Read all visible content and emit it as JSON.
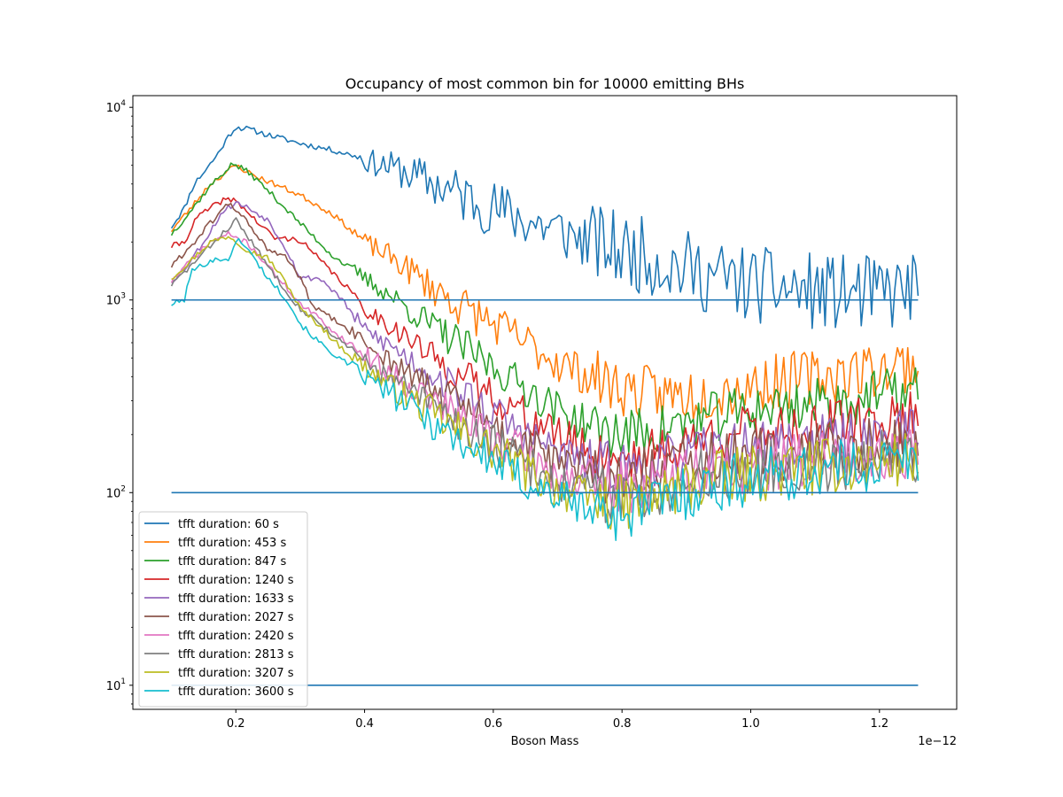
{
  "chart_data": {
    "type": "line",
    "title": "Occupancy of most common bin for 10000 emitting BHs",
    "xlabel": "Boson Mass",
    "ylabel": "",
    "x_offset_label": "1e−12",
    "xscale": "linear",
    "yscale": "log",
    "xlim": [
      0.04,
      1.32
    ],
    "ylim": [
      7.5,
      11500
    ],
    "x_ticks": [
      0.2,
      0.4,
      0.6,
      0.8,
      1.0,
      1.2
    ],
    "x_tick_labels": [
      "0.2",
      "0.4",
      "0.6",
      "0.8",
      "1.0",
      "1.2"
    ],
    "y_ticks": [
      10,
      100,
      1000,
      10000
    ],
    "y_tick_labels": [
      [
        "10",
        "1"
      ],
      [
        "10",
        "2"
      ],
      [
        "10",
        "3"
      ],
      [
        "10",
        "4"
      ]
    ],
    "grid": false,
    "legend_position": "lower-left",
    "x_range": [
      0.1,
      1.26
    ],
    "reference_lines": [
      {
        "value": 1000,
        "color": "#1f77b4"
      },
      {
        "value": 100,
        "color": "#1f77b4"
      },
      {
        "value": 10,
        "color": "#1f77b4"
      }
    ],
    "series": [
      {
        "name": "tfft duration: 60 s",
        "color": "#1f77b4",
        "noise": 0.3,
        "noise_start": 0.39,
        "seed": 11,
        "points": [
          [
            0.1,
            2400
          ],
          [
            0.12,
            3000
          ],
          [
            0.135,
            4000
          ],
          [
            0.15,
            4600
          ],
          [
            0.17,
            5600
          ],
          [
            0.19,
            7200
          ],
          [
            0.2,
            7900
          ],
          [
            0.22,
            7700
          ],
          [
            0.25,
            7200
          ],
          [
            0.3,
            6500
          ],
          [
            0.35,
            6000
          ],
          [
            0.385,
            5600
          ],
          [
            0.4,
            5300
          ],
          [
            0.45,
            4800
          ],
          [
            0.5,
            4100
          ],
          [
            0.55,
            3500
          ],
          [
            0.6,
            3000
          ],
          [
            0.65,
            2600
          ],
          [
            0.7,
            2300
          ],
          [
            0.75,
            2000
          ],
          [
            0.8,
            1800
          ],
          [
            0.85,
            1650
          ],
          [
            0.9,
            1450
          ],
          [
            0.95,
            1300
          ],
          [
            1.0,
            1200
          ],
          [
            1.05,
            1150
          ],
          [
            1.1,
            1100
          ],
          [
            1.15,
            1080
          ],
          [
            1.2,
            1070
          ],
          [
            1.26,
            1150
          ]
        ]
      },
      {
        "name": "tfft duration: 453 s",
        "color": "#ff7f0e",
        "noise": 0.22,
        "noise_start": 0.38,
        "seed": 23,
        "points": [
          [
            0.1,
            2300
          ],
          [
            0.13,
            3000
          ],
          [
            0.16,
            4000
          ],
          [
            0.2,
            5000
          ],
          [
            0.23,
            4400
          ],
          [
            0.26,
            4000
          ],
          [
            0.3,
            3500
          ],
          [
            0.35,
            2800
          ],
          [
            0.38,
            2300
          ],
          [
            0.4,
            2000
          ],
          [
            0.45,
            1600
          ],
          [
            0.5,
            1200
          ],
          [
            0.55,
            930
          ],
          [
            0.6,
            750
          ],
          [
            0.65,
            600
          ],
          [
            0.7,
            480
          ],
          [
            0.75,
            400
          ],
          [
            0.8,
            350
          ],
          [
            0.85,
            320
          ],
          [
            0.9,
            320
          ],
          [
            0.95,
            340
          ],
          [
            1.0,
            360
          ],
          [
            1.05,
            380
          ],
          [
            1.1,
            400
          ],
          [
            1.15,
            420
          ],
          [
            1.2,
            440
          ],
          [
            1.26,
            470
          ]
        ]
      },
      {
        "name": "tfft duration: 847 s",
        "color": "#2ca02c",
        "noise": 0.2,
        "noise_start": 0.38,
        "seed": 37,
        "points": [
          [
            0.1,
            2200
          ],
          [
            0.13,
            2900
          ],
          [
            0.16,
            3900
          ],
          [
            0.195,
            5100
          ],
          [
            0.22,
            4600
          ],
          [
            0.25,
            3700
          ],
          [
            0.3,
            2500
          ],
          [
            0.35,
            1700
          ],
          [
            0.4,
            1300
          ],
          [
            0.45,
            1000
          ],
          [
            0.5,
            750
          ],
          [
            0.55,
            580
          ],
          [
            0.6,
            450
          ],
          [
            0.65,
            350
          ],
          [
            0.7,
            270
          ],
          [
            0.75,
            220
          ],
          [
            0.8,
            200
          ],
          [
            0.85,
            210
          ],
          [
            0.9,
            230
          ],
          [
            0.95,
            250
          ],
          [
            1.0,
            270
          ],
          [
            1.05,
            280
          ],
          [
            1.1,
            290
          ],
          [
            1.15,
            300
          ],
          [
            1.2,
            320
          ],
          [
            1.26,
            340
          ]
        ]
      },
      {
        "name": "tfft duration: 1240 s",
        "color": "#d62728",
        "noise": 0.2,
        "noise_start": 0.39,
        "seed": 41,
        "points": [
          [
            0.1,
            1900
          ],
          [
            0.12,
            2000
          ],
          [
            0.14,
            2700
          ],
          [
            0.18,
            3300
          ],
          [
            0.2,
            3300
          ],
          [
            0.23,
            2600
          ],
          [
            0.26,
            2100
          ],
          [
            0.3,
            2050
          ],
          [
            0.34,
            1500
          ],
          [
            0.38,
            1100
          ],
          [
            0.4,
            900
          ],
          [
            0.45,
            700
          ],
          [
            0.5,
            520
          ],
          [
            0.55,
            400
          ],
          [
            0.6,
            320
          ],
          [
            0.65,
            250
          ],
          [
            0.7,
            200
          ],
          [
            0.75,
            165
          ],
          [
            0.8,
            155
          ],
          [
            0.85,
            160
          ],
          [
            0.9,
            180
          ],
          [
            0.95,
            200
          ],
          [
            1.0,
            210
          ],
          [
            1.05,
            215
          ],
          [
            1.1,
            220
          ],
          [
            1.15,
            225
          ],
          [
            1.2,
            235
          ],
          [
            1.26,
            250
          ]
        ]
      },
      {
        "name": "tfft duration: 1633 s",
        "color": "#9467bd",
        "noise": 0.2,
        "noise_start": 0.38,
        "seed": 53,
        "points": [
          [
            0.1,
            1250
          ],
          [
            0.12,
            1450
          ],
          [
            0.15,
            2000
          ],
          [
            0.18,
            2900
          ],
          [
            0.2,
            3200
          ],
          [
            0.22,
            3000
          ],
          [
            0.25,
            2600
          ],
          [
            0.28,
            1800
          ],
          [
            0.3,
            1300
          ],
          [
            0.33,
            1300
          ],
          [
            0.36,
            1050
          ],
          [
            0.4,
            700
          ],
          [
            0.45,
            550
          ],
          [
            0.5,
            420
          ],
          [
            0.55,
            330
          ],
          [
            0.6,
            260
          ],
          [
            0.65,
            200
          ],
          [
            0.7,
            165
          ],
          [
            0.75,
            140
          ],
          [
            0.8,
            135
          ],
          [
            0.85,
            140
          ],
          [
            0.9,
            155
          ],
          [
            0.95,
            165
          ],
          [
            1.0,
            175
          ],
          [
            1.05,
            180
          ],
          [
            1.1,
            185
          ],
          [
            1.15,
            190
          ],
          [
            1.2,
            200
          ],
          [
            1.26,
            210
          ]
        ]
      },
      {
        "name": "tfft duration: 2027 s",
        "color": "#8c564b",
        "noise": 0.22,
        "noise_start": 0.38,
        "seed": 61,
        "points": [
          [
            0.1,
            1500
          ],
          [
            0.13,
            1900
          ],
          [
            0.16,
            2500
          ],
          [
            0.19,
            3200
          ],
          [
            0.22,
            2500
          ],
          [
            0.25,
            1800
          ],
          [
            0.28,
            1650
          ],
          [
            0.3,
            1300
          ],
          [
            0.32,
            920
          ],
          [
            0.35,
            800
          ],
          [
            0.4,
            600
          ],
          [
            0.45,
            460
          ],
          [
            0.5,
            350
          ],
          [
            0.55,
            280
          ],
          [
            0.6,
            220
          ],
          [
            0.65,
            175
          ],
          [
            0.7,
            140
          ],
          [
            0.75,
            125
          ],
          [
            0.8,
            120
          ],
          [
            0.85,
            125
          ],
          [
            0.9,
            140
          ],
          [
            0.95,
            150
          ],
          [
            1.0,
            155
          ],
          [
            1.05,
            160
          ],
          [
            1.1,
            165
          ],
          [
            1.15,
            170
          ],
          [
            1.2,
            175
          ],
          [
            1.26,
            185
          ]
        ]
      },
      {
        "name": "tfft duration: 2420 s",
        "color": "#e377c2",
        "noise": 0.22,
        "noise_start": 0.38,
        "seed": 71,
        "points": [
          [
            0.1,
            1250
          ],
          [
            0.13,
            1600
          ],
          [
            0.16,
            2000
          ],
          [
            0.19,
            2200
          ],
          [
            0.22,
            1950
          ],
          [
            0.25,
            1500
          ],
          [
            0.28,
            1150
          ],
          [
            0.3,
            950
          ],
          [
            0.33,
            800
          ],
          [
            0.36,
            650
          ],
          [
            0.4,
            520
          ],
          [
            0.45,
            400
          ],
          [
            0.5,
            310
          ],
          [
            0.55,
            245
          ],
          [
            0.6,
            195
          ],
          [
            0.65,
            155
          ],
          [
            0.7,
            125
          ],
          [
            0.75,
            110
          ],
          [
            0.8,
            105
          ],
          [
            0.85,
            110
          ],
          [
            0.9,
            125
          ],
          [
            0.95,
            135
          ],
          [
            1.0,
            140
          ],
          [
            1.05,
            145
          ],
          [
            1.1,
            150
          ],
          [
            1.15,
            155
          ],
          [
            1.2,
            160
          ],
          [
            1.26,
            170
          ]
        ]
      },
      {
        "name": "tfft duration: 2813 s",
        "color": "#7f7f7f",
        "noise": 0.22,
        "noise_start": 0.38,
        "seed": 83,
        "points": [
          [
            0.1,
            1200
          ],
          [
            0.13,
            1500
          ],
          [
            0.16,
            1900
          ],
          [
            0.2,
            2600
          ],
          [
            0.22,
            2100
          ],
          [
            0.25,
            1500
          ],
          [
            0.28,
            1100
          ],
          [
            0.3,
            900
          ],
          [
            0.33,
            760
          ],
          [
            0.36,
            620
          ],
          [
            0.4,
            480
          ],
          [
            0.45,
            370
          ],
          [
            0.5,
            290
          ],
          [
            0.55,
            225
          ],
          [
            0.6,
            180
          ],
          [
            0.65,
            140
          ],
          [
            0.7,
            115
          ],
          [
            0.75,
            100
          ],
          [
            0.8,
            95
          ],
          [
            0.85,
            100
          ],
          [
            0.9,
            115
          ],
          [
            0.95,
            125
          ],
          [
            1.0,
            130
          ],
          [
            1.05,
            135
          ],
          [
            1.1,
            140
          ],
          [
            1.15,
            145
          ],
          [
            1.2,
            150
          ],
          [
            1.26,
            160
          ]
        ]
      },
      {
        "name": "tfft duration: 3207 s",
        "color": "#bcbd22",
        "noise": 0.22,
        "noise_start": 0.38,
        "seed": 97,
        "points": [
          [
            0.1,
            1300
          ],
          [
            0.13,
            1600
          ],
          [
            0.16,
            2000
          ],
          [
            0.19,
            2150
          ],
          [
            0.22,
            1800
          ],
          [
            0.25,
            1650
          ],
          [
            0.28,
            1200
          ],
          [
            0.3,
            900
          ],
          [
            0.33,
            740
          ],
          [
            0.36,
            580
          ],
          [
            0.4,
            450
          ],
          [
            0.45,
            340
          ],
          [
            0.5,
            265
          ],
          [
            0.55,
            205
          ],
          [
            0.6,
            165
          ],
          [
            0.65,
            130
          ],
          [
            0.7,
            105
          ],
          [
            0.75,
            92
          ],
          [
            0.8,
            88
          ],
          [
            0.85,
            95
          ],
          [
            0.9,
            108
          ],
          [
            0.95,
            118
          ],
          [
            1.0,
            125
          ],
          [
            1.05,
            130
          ],
          [
            1.1,
            135
          ],
          [
            1.15,
            140
          ],
          [
            1.2,
            145
          ],
          [
            1.26,
            150
          ]
        ]
      },
      {
        "name": "tfft duration: 3600 s",
        "color": "#17becf",
        "noise": 0.22,
        "noise_start": 0.38,
        "seed": 101,
        "points": [
          [
            0.1,
            950
          ],
          [
            0.12,
            1000
          ],
          [
            0.13,
            1400
          ],
          [
            0.16,
            1600
          ],
          [
            0.19,
            1650
          ],
          [
            0.205,
            2100
          ],
          [
            0.22,
            1800
          ],
          [
            0.25,
            1300
          ],
          [
            0.28,
            1000
          ],
          [
            0.3,
            750
          ],
          [
            0.33,
            600
          ],
          [
            0.36,
            500
          ],
          [
            0.4,
            400
          ],
          [
            0.45,
            310
          ],
          [
            0.5,
            240
          ],
          [
            0.55,
            185
          ],
          [
            0.6,
            145
          ],
          [
            0.65,
            115
          ],
          [
            0.7,
            95
          ],
          [
            0.75,
            82
          ],
          [
            0.8,
            78
          ],
          [
            0.85,
            88
          ],
          [
            0.9,
            100
          ],
          [
            0.95,
            110
          ],
          [
            1.0,
            118
          ],
          [
            1.05,
            125
          ],
          [
            1.1,
            130
          ],
          [
            1.15,
            135
          ],
          [
            1.2,
            140
          ],
          [
            1.26,
            150
          ]
        ]
      }
    ]
  }
}
